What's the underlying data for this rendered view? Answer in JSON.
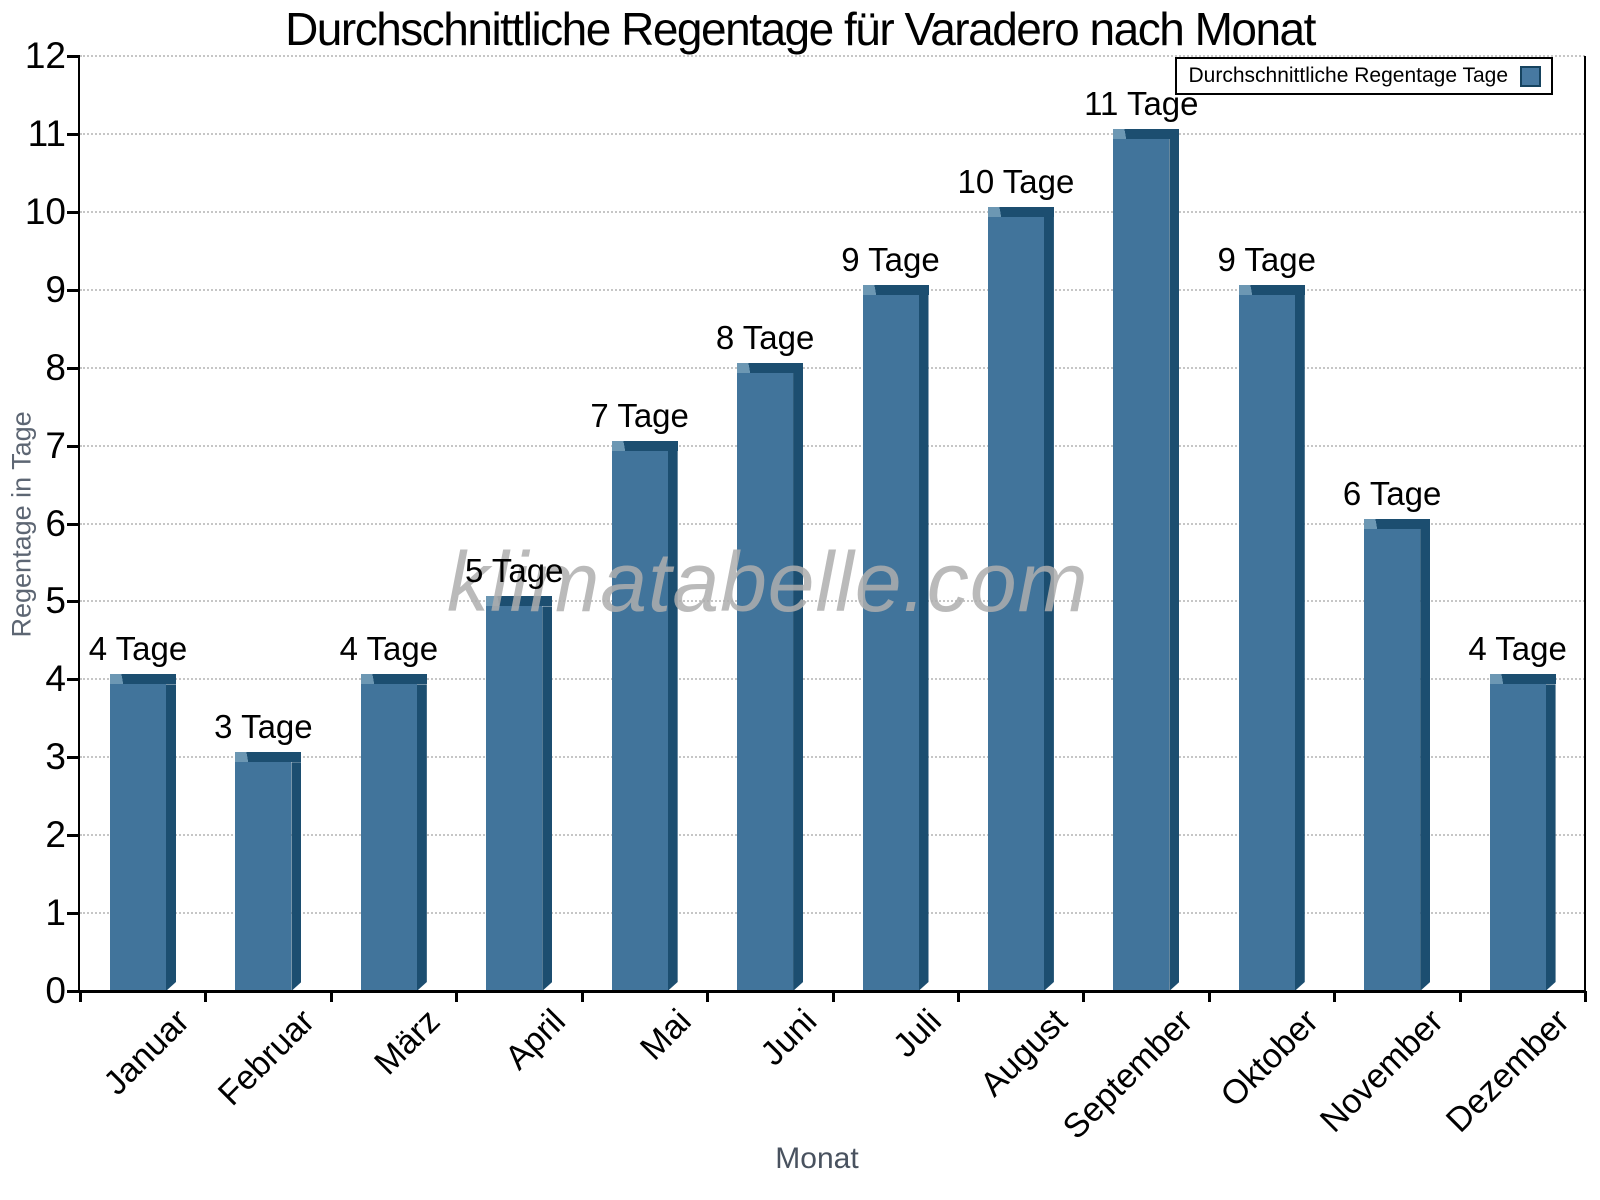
{
  "chart_data": {
    "type": "bar",
    "title": "Durchschnittliche Regentage für Varadero nach Monat",
    "xlabel": "Monat",
    "ylabel": "Regentage in Tage",
    "categories": [
      "Januar",
      "Februar",
      "März",
      "April",
      "Mai",
      "Juni",
      "Juli",
      "August",
      "September",
      "Oktober",
      "November",
      "Dezember"
    ],
    "values": [
      4,
      3,
      4,
      5,
      7,
      8,
      9,
      10,
      11,
      9,
      6,
      4
    ],
    "bar_labels": [
      "4 Tage",
      "3 Tage",
      "4 Tage",
      "5 Tage",
      "7 Tage",
      "8 Tage",
      "9 Tage",
      "10 Tage",
      "11 Tage",
      "9 Tage",
      "6 Tage",
      "4 Tage"
    ],
    "yticks": [
      0,
      1,
      2,
      3,
      4,
      5,
      6,
      7,
      8,
      9,
      10,
      11,
      12
    ],
    "ylim": [
      0,
      12
    ],
    "grid": "horizontal-dotted",
    "legend": {
      "label": "Durchschnittliche Regentage Tage",
      "position": "top-right"
    },
    "watermark": "klimatabelle.com",
    "colors": {
      "bar_fill": "#41749B",
      "bar_shadow": "#1C4E70",
      "bar_highlight": "#6C97B3",
      "legend_swatch": "#4779A1",
      "grid": "#c6c6c6",
      "axis": "#000000",
      "y_axis_title": "#5d6673",
      "x_axis_title": "#49525f",
      "watermark": "#aeaeae"
    }
  }
}
